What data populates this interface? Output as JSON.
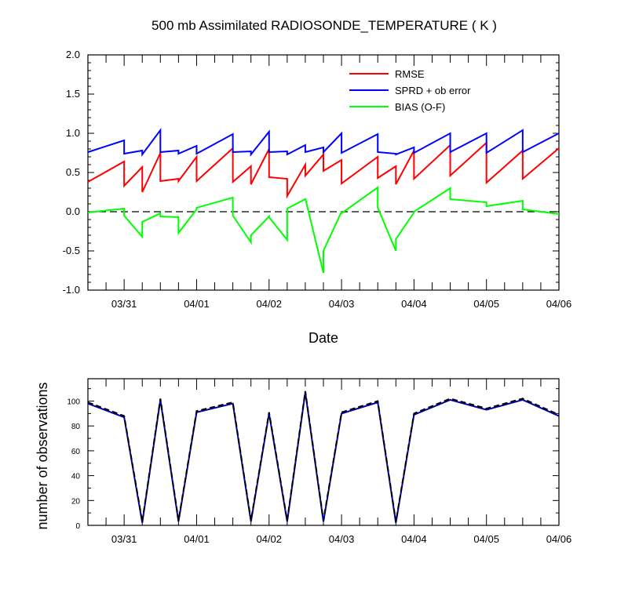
{
  "title": "500 mb Assimilated RADIOSONDE_TEMPERATURE ( K )",
  "chart_data": [
    {
      "type": "line",
      "title": "500 mb Assimilated RADIOSONDE_TEMPERATURE ( K )",
      "xlabel": "Date",
      "ylabel": "",
      "xlim": [
        0,
        6.5
      ],
      "ylim": [
        -1.0,
        2.0
      ],
      "x_tick_labels": [
        "03/31",
        "04/01",
        "04/02",
        "04/03",
        "04/04",
        "04/05",
        "04/06"
      ],
      "x_tick_positions": [
        0.5,
        1.5,
        2.5,
        3.5,
        4.5,
        5.5,
        6.5
      ],
      "y_tick_labels": [
        "-1.0",
        "-0.5",
        "0.0",
        "0.5",
        "1.0",
        "1.5",
        "2.0"
      ],
      "y_tick_values": [
        -1.0,
        -0.5,
        0.0,
        0.5,
        1.0,
        1.5,
        2.0
      ],
      "zero_line": true,
      "legend_placement": "top-right",
      "series": [
        {
          "name": "RMSE",
          "color": "#ff0000",
          "points": [
            [
              0,
              0.38
            ],
            [
              0.5,
              0.64
            ],
            [
              0.5,
              0.33
            ],
            [
              0.75,
              0.57
            ],
            [
              0.75,
              0.25
            ],
            [
              1.0,
              0.75
            ],
            [
              1.0,
              0.39
            ],
            [
              1.25,
              0.42
            ],
            [
              1.25,
              0.39
            ],
            [
              1.5,
              0.7
            ],
            [
              1.5,
              0.39
            ],
            [
              2.0,
              0.81
            ],
            [
              2.0,
              0.38
            ],
            [
              2.25,
              0.58
            ],
            [
              2.25,
              0.35
            ],
            [
              2.5,
              0.8
            ],
            [
              2.5,
              0.44
            ],
            [
              2.75,
              0.42
            ],
            [
              2.75,
              0.2
            ],
            [
              3.0,
              0.6
            ],
            [
              3.0,
              0.46
            ],
            [
              3.25,
              0.73
            ],
            [
              3.25,
              0.52
            ],
            [
              3.5,
              0.66
            ],
            [
              3.5,
              0.36
            ],
            [
              4.0,
              0.7
            ],
            [
              4.0,
              0.43
            ],
            [
              4.25,
              0.58
            ],
            [
              4.25,
              0.35
            ],
            [
              4.5,
              0.78
            ],
            [
              4.5,
              0.42
            ],
            [
              5.0,
              0.85
            ],
            [
              5.0,
              0.46
            ],
            [
              5.5,
              0.88
            ],
            [
              5.5,
              0.37
            ],
            [
              6.0,
              0.78
            ],
            [
              6.0,
              0.42
            ],
            [
              6.5,
              0.81
            ]
          ]
        },
        {
          "name": "SPRD + ob error",
          "color": "#0000ff",
          "points": [
            [
              0,
              0.76
            ],
            [
              0.5,
              0.91
            ],
            [
              0.5,
              0.74
            ],
            [
              0.75,
              0.78
            ],
            [
              0.75,
              0.73
            ],
            [
              1.0,
              1.04
            ],
            [
              1.0,
              0.76
            ],
            [
              1.25,
              0.78
            ],
            [
              1.25,
              0.74
            ],
            [
              1.5,
              0.84
            ],
            [
              1.5,
              0.74
            ],
            [
              2.0,
              0.99
            ],
            [
              2.0,
              0.76
            ],
            [
              2.25,
              0.77
            ],
            [
              2.25,
              0.73
            ],
            [
              2.5,
              1.02
            ],
            [
              2.5,
              0.76
            ],
            [
              2.75,
              0.77
            ],
            [
              2.75,
              0.73
            ],
            [
              3.0,
              0.85
            ],
            [
              3.0,
              0.76
            ],
            [
              3.25,
              0.82
            ],
            [
              3.25,
              0.76
            ],
            [
              3.5,
              1.0
            ],
            [
              3.5,
              0.75
            ],
            [
              4.0,
              0.99
            ],
            [
              4.0,
              0.76
            ],
            [
              4.25,
              0.74
            ],
            [
              4.25,
              0.73
            ],
            [
              4.5,
              0.82
            ],
            [
              4.5,
              0.75
            ],
            [
              5.0,
              1.0
            ],
            [
              5.0,
              0.76
            ],
            [
              5.5,
              1.0
            ],
            [
              5.5,
              0.75
            ],
            [
              6.0,
              1.04
            ],
            [
              6.0,
              0.76
            ],
            [
              6.5,
              1.0
            ]
          ]
        },
        {
          "name": "BIAS (O-F)",
          "color": "#00ff00",
          "points": [
            [
              0,
              -0.01
            ],
            [
              0.5,
              0.04
            ],
            [
              0.5,
              -0.05
            ],
            [
              0.75,
              -0.32
            ],
            [
              0.75,
              -0.13
            ],
            [
              1.0,
              -0.02
            ],
            [
              1.0,
              -0.06
            ],
            [
              1.25,
              -0.07
            ],
            [
              1.25,
              -0.27
            ],
            [
              1.5,
              0.03
            ],
            [
              1.5,
              0.05
            ],
            [
              2.0,
              0.18
            ],
            [
              2.0,
              -0.05
            ],
            [
              2.25,
              -0.39
            ],
            [
              2.25,
              -0.3
            ],
            [
              2.5,
              -0.06
            ],
            [
              2.5,
              -0.07
            ],
            [
              2.75,
              -0.36
            ],
            [
              2.75,
              0.04
            ],
            [
              3.0,
              0.16
            ],
            [
              3.0,
              0.17
            ],
            [
              3.25,
              -0.78
            ],
            [
              3.25,
              -0.5
            ],
            [
              3.5,
              0.0
            ],
            [
              3.5,
              -0.02
            ],
            [
              4.0,
              0.31
            ],
            [
              4.0,
              0.05
            ],
            [
              4.25,
              -0.5
            ],
            [
              4.25,
              -0.35
            ],
            [
              4.5,
              -0.01
            ],
            [
              4.5,
              0.0
            ],
            [
              5.0,
              0.3
            ],
            [
              5.0,
              0.16
            ],
            [
              5.5,
              0.12
            ],
            [
              5.5,
              0.07
            ],
            [
              6.0,
              0.14
            ],
            [
              6.0,
              0.03
            ],
            [
              6.5,
              -0.03
            ]
          ]
        }
      ]
    },
    {
      "type": "line",
      "title": "",
      "xlabel": "",
      "ylabel": "number of observations",
      "xlim": [
        0,
        6.5
      ],
      "ylim": [
        0,
        118
      ],
      "x_tick_labels": [
        "03/31",
        "04/01",
        "04/02",
        "04/03",
        "04/04",
        "04/05",
        "04/06"
      ],
      "x_tick_positions": [
        0.5,
        1.5,
        2.5,
        3.5,
        4.5,
        5.5,
        6.5
      ],
      "y_tick_labels": [
        "0",
        "20",
        "40",
        "60",
        "80",
        "100"
      ],
      "y_tick_values": [
        0,
        20,
        40,
        60,
        80,
        100
      ],
      "series": [
        {
          "style": "solid",
          "color": "#0000aa",
          "points": [
            [
              0,
              98
            ],
            [
              0.5,
              87
            ],
            [
              0.75,
              2
            ],
            [
              1.0,
              101
            ],
            [
              1.25,
              3
            ],
            [
              1.5,
              91
            ],
            [
              2.0,
              98
            ],
            [
              2.25,
              3
            ],
            [
              2.5,
              90
            ],
            [
              2.75,
              3
            ],
            [
              3.0,
              107
            ],
            [
              3.25,
              3
            ],
            [
              3.5,
              90
            ],
            [
              4.0,
              99
            ],
            [
              4.25,
              2
            ],
            [
              4.5,
              89
            ],
            [
              5.0,
              101
            ],
            [
              5.5,
              93
            ],
            [
              6.0,
              101
            ],
            [
              6.5,
              88
            ]
          ]
        },
        {
          "style": "dashed",
          "color": "#000000",
          "points": [
            [
              0,
              99
            ],
            [
              0.5,
              88
            ],
            [
              0.75,
              3
            ],
            [
              1.0,
              102
            ],
            [
              1.25,
              4
            ],
            [
              1.5,
              92
            ],
            [
              2.0,
              99
            ],
            [
              2.25,
              4
            ],
            [
              2.5,
              91
            ],
            [
              2.75,
              4
            ],
            [
              3.0,
              108
            ],
            [
              3.25,
              4
            ],
            [
              3.5,
              91
            ],
            [
              4.0,
              100
            ],
            [
              4.25,
              3
            ],
            [
              4.5,
              90
            ],
            [
              5.0,
              102
            ],
            [
              5.5,
              94
            ],
            [
              6.0,
              102
            ],
            [
              6.5,
              89
            ]
          ]
        }
      ]
    }
  ]
}
